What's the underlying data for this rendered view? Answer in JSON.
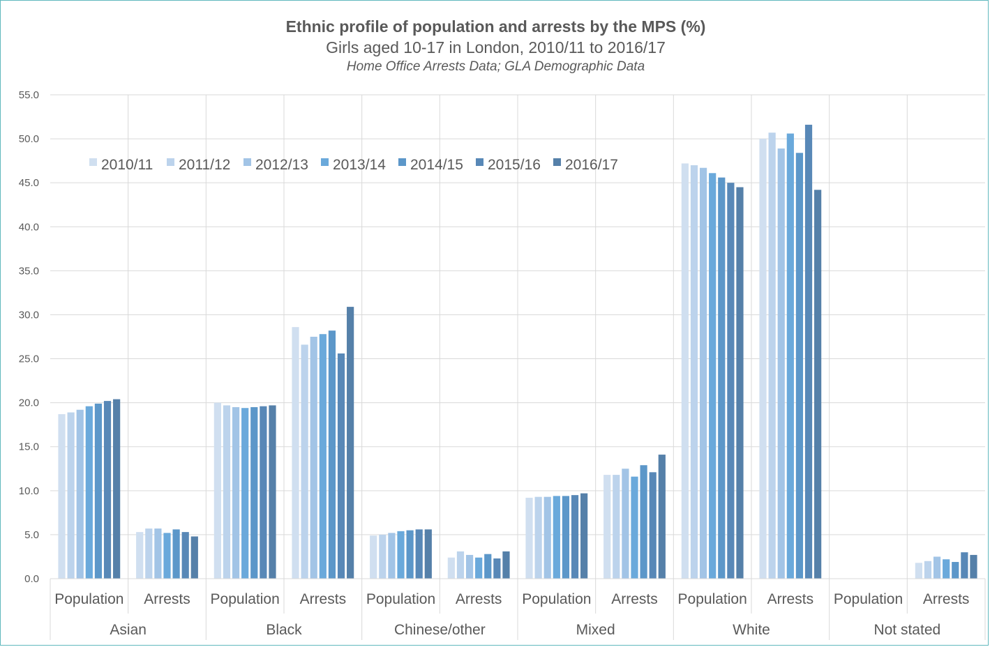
{
  "chart_data": {
    "type": "bar",
    "title": "Ethnic profile of population and arrests by the MPS (%)",
    "subtitle": "Girls aged 10-17 in London, 2010/11 to 2016/17",
    "source": "Home Office Arrests Data; GLA Demographic Data",
    "ylim": [
      0,
      55
    ],
    "yticks": [
      "0.0",
      "5.0",
      "10.0",
      "15.0",
      "20.0",
      "25.0",
      "30.0",
      "35.0",
      "40.0",
      "45.0",
      "50.0",
      "55.0"
    ],
    "grid": true,
    "legend_position": "top-left",
    "groups": [
      "Asian",
      "Black",
      "Chinese/other",
      "Mixed",
      "White",
      "Not stated"
    ],
    "categories": [
      "Population",
      "Arrests",
      "Population",
      "Arrests",
      "Population",
      "Arrests",
      "Population",
      "Arrests",
      "Population",
      "Arrests",
      "Population",
      "Arrests"
    ],
    "series": [
      {
        "name": "2010/11",
        "color": "#d0dff0",
        "values": [
          18.7,
          5.3,
          20.0,
          28.6,
          4.9,
          2.4,
          9.2,
          11.8,
          47.2,
          50.0,
          0,
          1.8
        ]
      },
      {
        "name": "2011/12",
        "color": "#bcd3ec",
        "values": [
          18.9,
          5.7,
          19.7,
          26.6,
          5.0,
          3.1,
          9.3,
          11.8,
          47.0,
          50.7,
          0,
          2.0
        ]
      },
      {
        "name": "2012/13",
        "color": "#a2c4e6",
        "values": [
          19.2,
          5.7,
          19.5,
          27.5,
          5.2,
          2.7,
          9.3,
          12.5,
          46.7,
          48.9,
          0,
          2.5
        ]
      },
      {
        "name": "2013/14",
        "color": "#6aa9db",
        "values": [
          19.6,
          5.2,
          19.4,
          27.8,
          5.4,
          2.4,
          9.4,
          11.6,
          46.1,
          50.6,
          0,
          2.2
        ]
      },
      {
        "name": "2014/15",
        "color": "#5c97c9",
        "values": [
          19.9,
          5.6,
          19.5,
          28.2,
          5.5,
          2.8,
          9.4,
          12.9,
          45.6,
          48.4,
          0,
          1.9
        ]
      },
      {
        "name": "2015/16",
        "color": "#5888b7",
        "values": [
          20.2,
          5.3,
          19.6,
          25.6,
          5.6,
          2.3,
          9.5,
          12.1,
          45.0,
          51.6,
          0,
          3.0
        ]
      },
      {
        "name": "2016/17",
        "color": "#5580a9",
        "values": [
          20.4,
          4.8,
          19.7,
          30.9,
          5.6,
          3.1,
          9.7,
          14.1,
          44.5,
          44.2,
          0,
          2.7
        ]
      }
    ]
  }
}
